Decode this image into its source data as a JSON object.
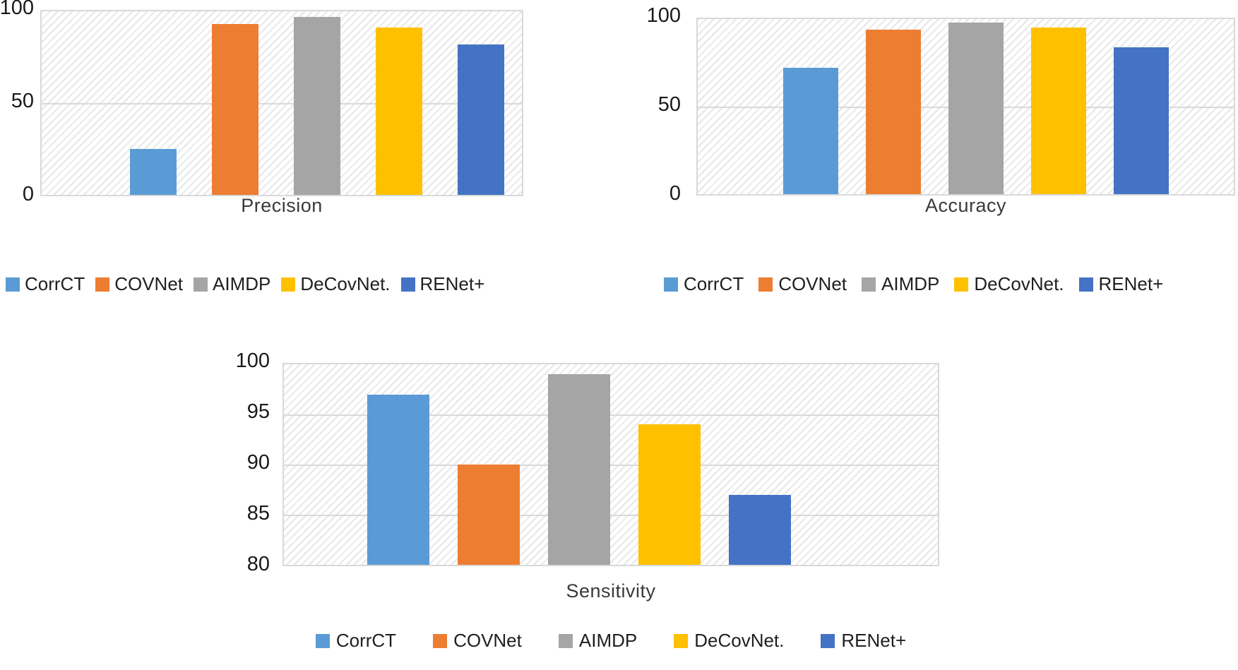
{
  "palette": {
    "CorrCT": "#5B9BD5",
    "COVNet": "#ED7D31",
    "AIMDP": "#A5A5A5",
    "DeCovNet.": "#FFC000",
    "RENet+": "#4472C4"
  },
  "colors": {
    "plot_border": "#D9D9D9",
    "gridline": "#D9D9D9",
    "hatch_stripe": "#E7E7E7",
    "tick_text": "#1A1A1A",
    "title_text": "#3A3A3A",
    "legend_text": "#1F1F1F",
    "background": "#FFFFFF"
  },
  "chart_data": [
    {
      "id": "precision",
      "type": "bar",
      "title": "Precision",
      "categories": [
        "CorrCT",
        "COVNet",
        "AIMDP",
        "DeCovNet.",
        "RENet+"
      ],
      "values": [
        25,
        93,
        97,
        91,
        82
      ],
      "xlabel": "",
      "ylabel": "",
      "ylim": [
        0,
        100
      ],
      "yticks": [
        0,
        50,
        100
      ],
      "grid": true,
      "legend": [
        "CorrCT",
        "COVNet",
        "AIMDP",
        "DeCovNet.",
        "RENet+"
      ],
      "legend_position": "bottom-left"
    },
    {
      "id": "accuracy",
      "type": "bar",
      "title": "Accuracy",
      "categories": [
        "CorrCT",
        "COVNet",
        "AIMDP",
        "DeCovNet.",
        "RENet+"
      ],
      "values": [
        72,
        94,
        98,
        95,
        84
      ],
      "xlabel": "",
      "ylabel": "",
      "ylim": [
        0,
        100
      ],
      "yticks": [
        0,
        50,
        100
      ],
      "grid": true,
      "legend": [
        "CorrCT",
        "COVNet",
        "AIMDP",
        "DeCovNet.",
        "RENet+"
      ],
      "legend_position": "bottom-left"
    },
    {
      "id": "sensitivity",
      "type": "bar",
      "title": "Sensitivity",
      "categories": [
        "CorrCT",
        "COVNet",
        "AIMDP",
        "DeCovNet.",
        "RENet+"
      ],
      "values": [
        97,
        90,
        99,
        94,
        87
      ],
      "xlabel": "",
      "ylabel": "",
      "ylim": [
        80,
        100
      ],
      "yticks": [
        80,
        85,
        90,
        95,
        100
      ],
      "grid": true,
      "legend": [
        "CorrCT",
        "COVNet",
        "AIMDP",
        "DeCovNet.",
        "RENet+"
      ],
      "legend_position": "bottom-center"
    }
  ]
}
